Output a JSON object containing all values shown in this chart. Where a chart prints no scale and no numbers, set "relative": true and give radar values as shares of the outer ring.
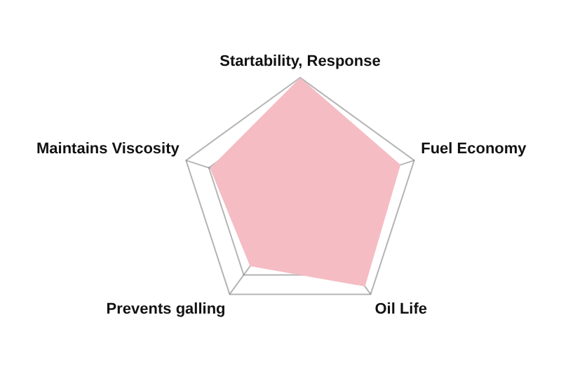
{
  "chart_data": {
    "type": "radar",
    "relative": true,
    "categories": [
      "Startability, Response",
      "Fuel Economy",
      "Oil Life",
      "Prevents galling",
      "Maintains Viscosity"
    ],
    "series": [
      {
        "color": "#f5bcc3",
        "values": [
          1,
          0.88,
          0.92,
          0.71,
          0.79
        ]
      }
    ]
  }
}
